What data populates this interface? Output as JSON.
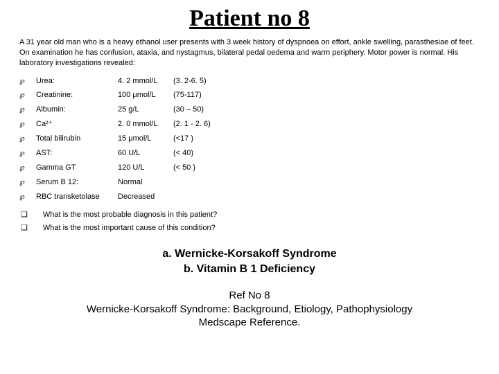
{
  "title": "Patient no 8",
  "case_description": "A 31 year old man who is a heavy ethanol user presents with 3 week history of dyspnoea on effort, ankle swelling, parasthesiae of feet. On examination he has confusion, ataxia, and nystagmus, bilateral pedal oedema and warm periphery. Motor power is normal. His laboratory investigations revealed:",
  "labs": [
    {
      "name": "Urea:",
      "value": "4. 2 mmol/L",
      "ref": "(3. 2-6. 5)"
    },
    {
      "name": "Creatinine:",
      "value": "100 μmol/L",
      "ref": "(75-117)"
    },
    {
      "name": "Albumin:",
      "value": "25 g/L",
      "ref": "(30 – 50)"
    },
    {
      "name": "Ca²⁺",
      "value": "2. 0 mmol/L",
      "ref": "(2. 1 - 2. 6)"
    },
    {
      "name": "Total bilirubin",
      "value": "15 μmol/L",
      "ref": "(<17 )"
    },
    {
      "name": "AST:",
      "value": "60 U/L",
      "ref": "(< 40)"
    },
    {
      "name": "Gamma GT",
      "value": "120 U/L",
      "ref": "(< 50 )"
    },
    {
      "name": "Serum B 12:",
      "value": "Normal",
      "ref": ""
    },
    {
      "name": "RBC transketolase",
      "value": "Decreased",
      "ref": ""
    }
  ],
  "questions": [
    "What is the most probable diagnosis in this patient?",
    "What is the most important cause of this condition?"
  ],
  "answers": {
    "a": "a. Wernicke-Korsakoff Syndrome",
    "b": "b. Vitamin B 1 Deficiency"
  },
  "reference": {
    "line1": "Ref No 8",
    "line2": "Wernicke-Korsakoff Syndrome: Background, Etiology, Pathophysiology",
    "line3": "Medscape Reference."
  },
  "style": {
    "title_fontsize": 34,
    "body_fontsize": 11,
    "answer_fontsize": 16,
    "ref_fontsize": 15,
    "text_color": "#000000",
    "background_color": "#ffffff",
    "bullet_glyph": "℘",
    "question_bullet": "❏"
  }
}
